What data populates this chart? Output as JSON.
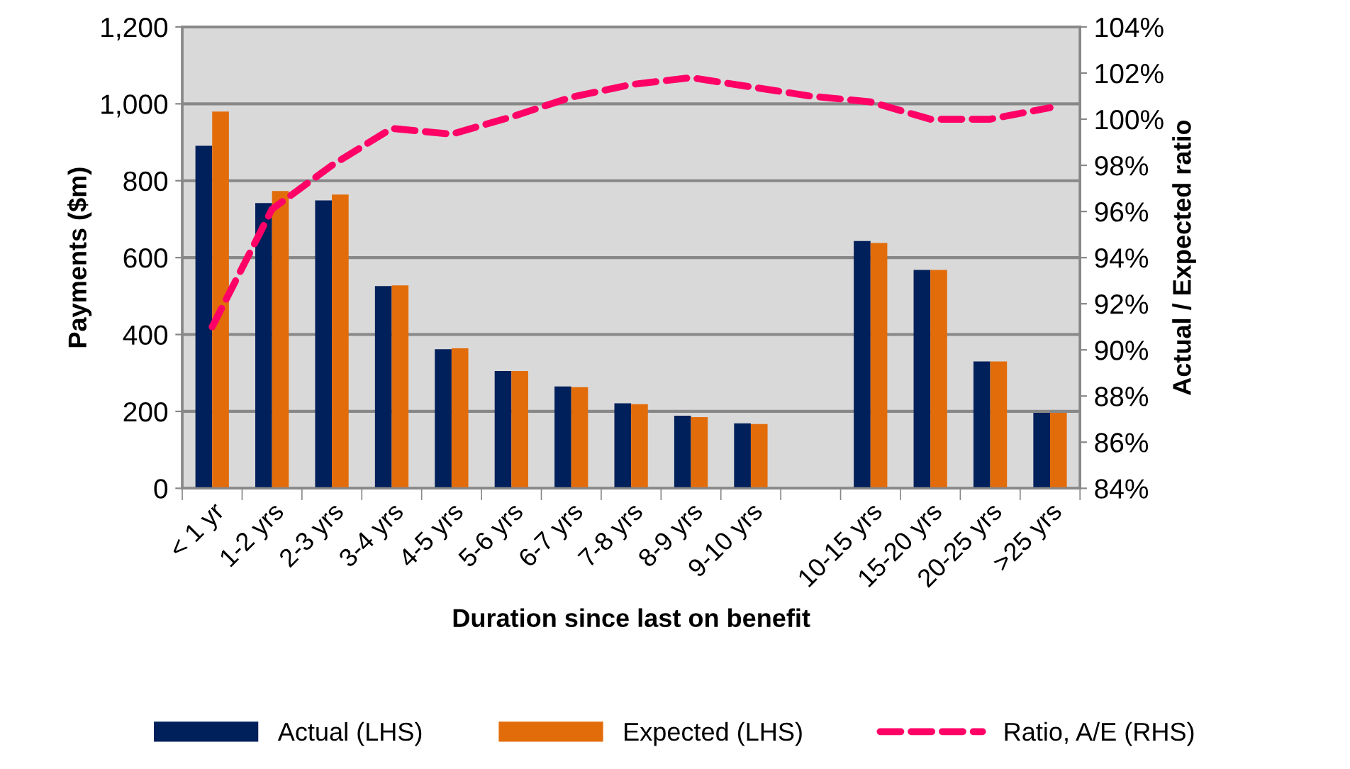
{
  "chart_data": {
    "type": "bar",
    "xlabel": "Duration since last on benefit",
    "ylabel": "Payments ($m)",
    "y2label": "Actual / Expected ratio",
    "categories": [
      "< 1 yr",
      "1-2 yrs",
      "2-3 yrs",
      "3-4 yrs",
      "4-5 yrs",
      "5-6 yrs",
      "6-7 yrs",
      "7-8 yrs",
      "8-9 yrs",
      "9-10 yrs",
      null,
      "10-15 yrs",
      "15-20 yrs",
      "20-25 yrs",
      ">25 yrs"
    ],
    "series": [
      {
        "name": "Actual (LHS)",
        "color": "#00205b",
        "values": [
          891,
          742,
          749,
          526,
          362,
          305,
          265,
          221,
          189,
          169,
          null,
          643,
          568,
          330,
          196
        ]
      },
      {
        "name": "Expected (LHS)",
        "color": "#e36c0a",
        "values": [
          980,
          773,
          764,
          528,
          364,
          305,
          263,
          219,
          185,
          167,
          null,
          638,
          568,
          330,
          196
        ]
      },
      {
        "name": "Ratio, A/E (RHS)",
        "type": "line",
        "axis": "y2",
        "line_style": "dashed",
        "color": "#ff0066",
        "values": [
          91.0,
          96.1,
          98.0,
          99.6,
          99.35,
          100.1,
          100.95,
          101.5,
          101.8,
          101.4,
          101.0,
          100.75,
          100.0,
          100.0,
          100.5
        ]
      }
    ],
    "ylim": [
      0,
      1200
    ],
    "yticks": [
      0,
      {
        "value": 200,
        "label": "200"
      },
      {
        "value": 400,
        "label": "400"
      },
      {
        "value": 600,
        "label": "600"
      },
      {
        "value": 800,
        "label": "800"
      },
      {
        "value": 1000,
        "label": "1,000"
      },
      {
        "value": 1200,
        "label": "1,200"
      }
    ],
    "y2lim": [
      84,
      104
    ],
    "y2ticks": [
      {
        "value": 84,
        "label": "84%"
      },
      {
        "value": 86,
        "label": "86%"
      },
      {
        "value": 88,
        "label": "88%"
      },
      {
        "value": 90,
        "label": "90%"
      },
      {
        "value": 92,
        "label": "92%"
      },
      {
        "value": 94,
        "label": "94%"
      },
      {
        "value": 96,
        "label": "96%"
      },
      {
        "value": 98,
        "label": "98%"
      },
      {
        "value": 100,
        "label": "100%"
      },
      {
        "value": 102,
        "label": "102%"
      },
      {
        "value": 104,
        "label": "104%"
      }
    ],
    "grid": "y",
    "legend": "bottom",
    "marker": "none"
  }
}
